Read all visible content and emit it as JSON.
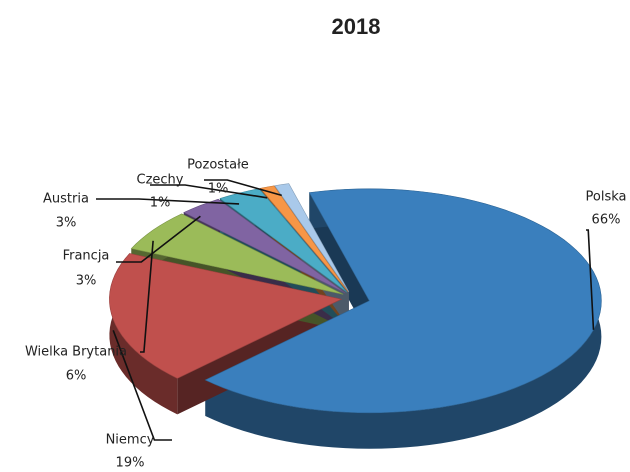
{
  "chart_data": {
    "type": "pie",
    "title": "2018",
    "categories": [
      "Polska",
      "Niemcy",
      "Wielka Brytania",
      "Francja",
      "Austria",
      "Czechy",
      "Pozostałe"
    ],
    "values": [
      66,
      19,
      6,
      3,
      3,
      1,
      1
    ],
    "value_labels": [
      "66%",
      "19%",
      "6%",
      "3%",
      "3%",
      "1%",
      "1%"
    ],
    "colors": [
      "#3a7fbd",
      "#c0504d",
      "#9bbb59",
      "#8064a2",
      "#4bacc6",
      "#f79646",
      "#a9c9ea"
    ]
  }
}
